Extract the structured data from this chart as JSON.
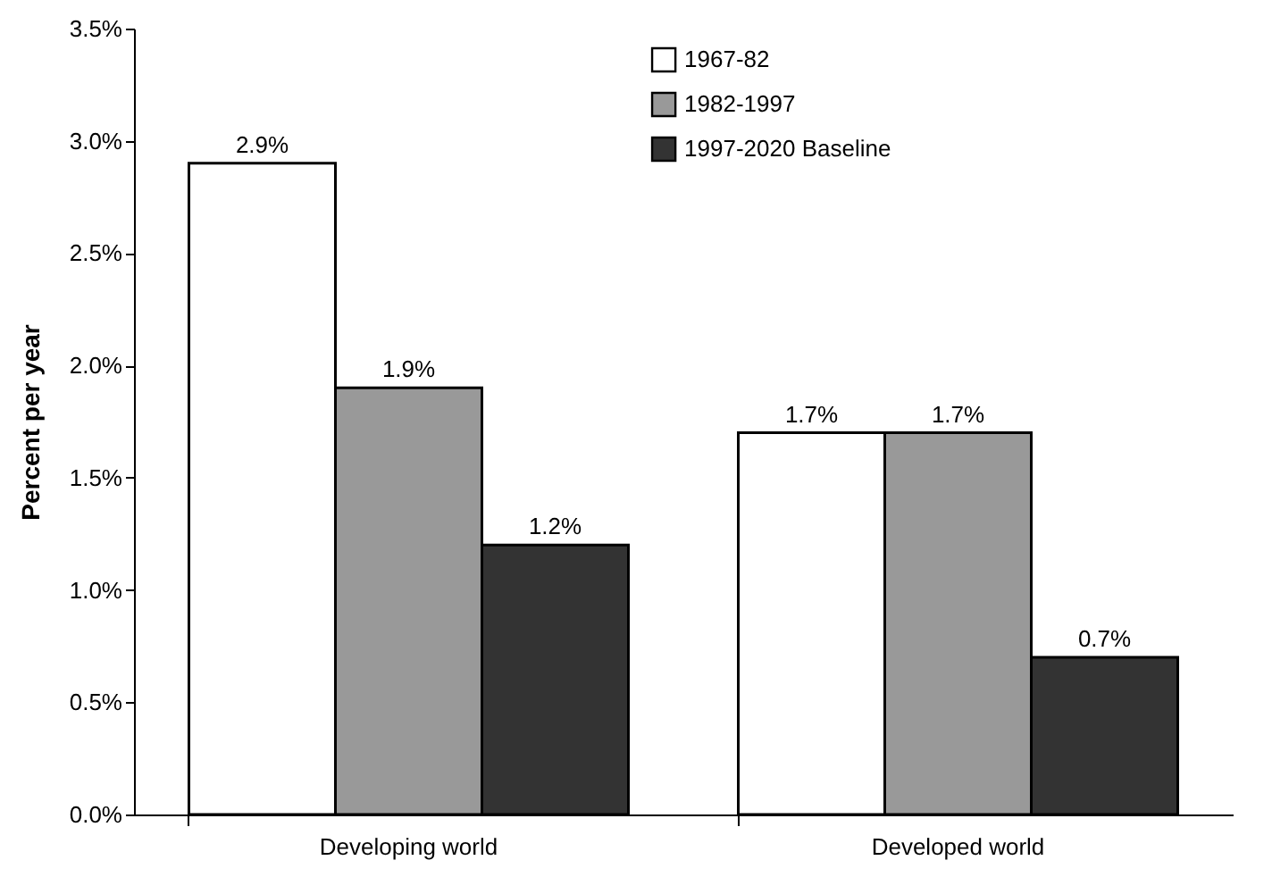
{
  "chart_data": {
    "type": "bar",
    "ylabel": "Percent per year",
    "categories": [
      "Developing world",
      "Developed world"
    ],
    "series": [
      {
        "name": "1967-82",
        "color": "#ffffff",
        "values": [
          2.9,
          1.7
        ],
        "value_labels": [
          "2.9%",
          "1.7%"
        ]
      },
      {
        "name": "1982-1997",
        "color": "#999999",
        "values": [
          1.9,
          1.7
        ],
        "value_labels": [
          "1.9%",
          "1.7%"
        ]
      },
      {
        "name": "1997-2020 Baseline",
        "color": "#333333",
        "values": [
          1.2,
          0.7
        ],
        "value_labels": [
          "1.2%",
          "0.7%"
        ]
      }
    ],
    "ylim": [
      0,
      3.5
    ],
    "yticks": [
      {
        "value": 0,
        "label": "0.0%"
      },
      {
        "value": 0.5,
        "label": "0.5%"
      },
      {
        "value": 1,
        "label": "1.0%"
      },
      {
        "value": 1.5,
        "label": "1.5%"
      },
      {
        "value": 2,
        "label": "2.0%"
      },
      {
        "value": 2.5,
        "label": "2.5%"
      },
      {
        "value": 3,
        "label": "3.0%"
      },
      {
        "value": 3.5,
        "label": "3.5%"
      }
    ],
    "grid": false,
    "legend": "top right"
  }
}
